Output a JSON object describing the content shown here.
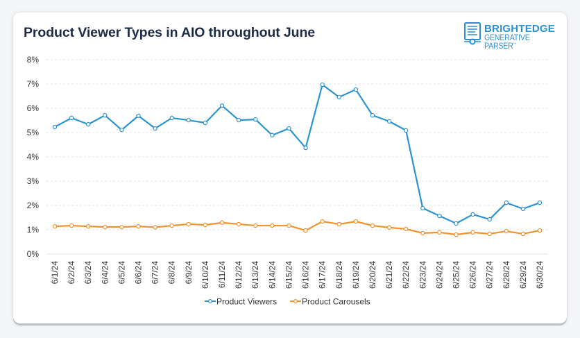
{
  "header": {
    "title": "Product Viewer Types in AIO throughout June",
    "logo_main": "BRIGHTEDGE",
    "logo_sub": "GENERATIVE PARSER",
    "logo_tm": "™"
  },
  "colors": {
    "viewers": "#2b93cf",
    "carousels": "#f0922e",
    "grid": "#e3e3e3",
    "title": "#1d2b45"
  },
  "chart_data": {
    "type": "line",
    "title": "Product Viewer Types in AIO throughout June",
    "xlabel": "",
    "ylabel": "",
    "ylim": [
      0,
      8
    ],
    "yticks": [
      "0%",
      "1%",
      "2%",
      "3%",
      "4%",
      "5%",
      "6%",
      "7%",
      "8%"
    ],
    "grid": true,
    "legend_position": "bottom",
    "categories": [
      "6/1/24",
      "6/2/24",
      "6/3/24",
      "6/4/24",
      "6/5/24",
      "6/6/24",
      "6/7/24",
      "6/8/24",
      "6/9/24",
      "6/10/24",
      "6/11/24",
      "6/12/24",
      "6/13/24",
      "6/14/24",
      "6/15/24",
      "6/16/24",
      "6/17/24",
      "6/18/24",
      "6/19/24",
      "6/20/24",
      "6/21/24",
      "6/22/24",
      "6/23/24",
      "6/24/24",
      "6/25/24",
      "6/26/24",
      "6/27/24",
      "6/28/24",
      "6/29/24",
      "6/30/24"
    ],
    "series": [
      {
        "name": "Product Viewers",
        "values": [
          5.23,
          5.6,
          5.34,
          5.71,
          5.11,
          5.69,
          5.17,
          5.6,
          5.51,
          5.4,
          6.11,
          5.51,
          5.54,
          4.89,
          5.17,
          4.37,
          6.97,
          6.46,
          6.77,
          5.71,
          5.46,
          5.09,
          1.89,
          1.57,
          1.26,
          1.63,
          1.43,
          2.11,
          1.86,
          2.11
        ]
      },
      {
        "name": "Product Carousels",
        "values": [
          1.14,
          1.17,
          1.14,
          1.11,
          1.11,
          1.14,
          1.1,
          1.17,
          1.23,
          1.2,
          1.29,
          1.23,
          1.17,
          1.17,
          1.17,
          0.97,
          1.34,
          1.23,
          1.34,
          1.17,
          1.09,
          1.03,
          0.86,
          0.89,
          0.8,
          0.89,
          0.83,
          0.94,
          0.83,
          0.97
        ]
      }
    ]
  }
}
